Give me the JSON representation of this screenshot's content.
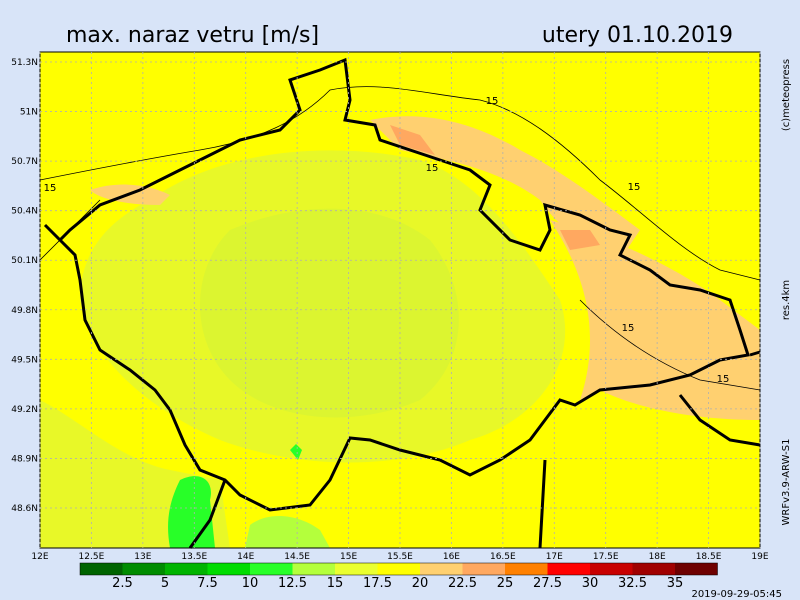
{
  "header": {
    "title": "max. naraz vetru [m/s]",
    "date": "utery 01.10.2019"
  },
  "side": {
    "copyright": "(c)meteopress",
    "resolution": "res.4km",
    "model": "WRFv3.9-ARW-S1"
  },
  "footer": {
    "run": "2019-09-29-05:45"
  },
  "map": {
    "lat_labels": [
      "51.3N",
      "51N",
      "50.7N",
      "50.4N",
      "50.1N",
      "49.8N",
      "49.5N",
      "49.2N",
      "48.9N",
      "48.6N"
    ],
    "lon_labels": [
      "12E",
      "12.5E",
      "13E",
      "13.5E",
      "14E",
      "14.5E",
      "15E",
      "15.5E",
      "16E",
      "16.5E",
      "17E",
      "17.5E",
      "18E",
      "18.5E",
      "19E"
    ],
    "contour_labels": [
      "15",
      "15",
      "15",
      "15",
      "15",
      "15"
    ]
  },
  "legend": {
    "colors": [
      "#006400",
      "#008c00",
      "#00b400",
      "#00dc00",
      "#28ff28",
      "#b4ff3c",
      "#eaff30",
      "#ffff00",
      "#ffd070",
      "#ffa860",
      "#ff8000",
      "#ff0000",
      "#c80000",
      "#a00000",
      "#6e0000"
    ],
    "labels": [
      "2.5",
      "5",
      "7.5",
      "10",
      "12.5",
      "15",
      "17.5",
      "20",
      "22.5",
      "25",
      "27.5",
      "30",
      "32.5",
      "35"
    ]
  }
}
